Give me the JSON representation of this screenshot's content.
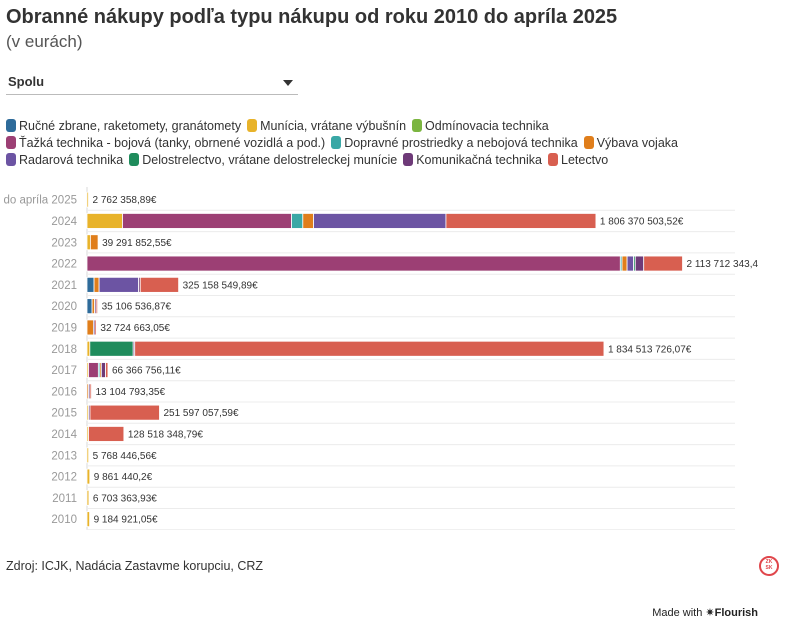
{
  "header": {
    "title": "Obranné nákupy podľa typu nákupu od roku 2010 do apríla 2025",
    "subtitle": "(v eurách)"
  },
  "filter": {
    "selected": "Spolu"
  },
  "legend": [
    {
      "label": "Ručné zbrane, raketomety, granátomety",
      "color": "#2e6b9a",
      "name": "legend-rucne-zbrane"
    },
    {
      "label": "Munícia, vrátane výbušnín",
      "color": "#e8b32a",
      "name": "legend-municia"
    },
    {
      "label": "Odmínovacia technika",
      "color": "#7bb540",
      "name": "legend-odminovacia"
    },
    {
      "label": "Ťažká technika - bojová (tanky, obrnené vozidlá a pod.)",
      "color": "#9c3f74",
      "name": "legend-tazka-technika"
    },
    {
      "label": "Dopravné prostriedky a nebojová technika",
      "color": "#3aa8a6",
      "name": "legend-dopravne"
    },
    {
      "label": "Výbava vojaka",
      "color": "#e07e1b",
      "name": "legend-vybava"
    },
    {
      "label": "Radarová technika",
      "color": "#6c54a3",
      "name": "legend-radarova"
    },
    {
      "label": "Delostrelectvo, vrátane delostreleckej munície",
      "color": "#1f8c5c",
      "name": "legend-delostrelectvo"
    },
    {
      "label": "Komunikačná technika",
      "color": "#6e3a78",
      "name": "legend-komunikacna"
    },
    {
      "label": "Letectvo",
      "color": "#d85f50",
      "name": "legend-letectvo"
    }
  ],
  "chart_data": {
    "type": "bar",
    "orientation": "horizontal",
    "stacked": true,
    "categories": [
      "do apríla 2025",
      "2024",
      "2023",
      "2022",
      "2021",
      "2020",
      "2019",
      "2018",
      "2017",
      "2016",
      "2015",
      "2014",
      "2013",
      "2012",
      "2011",
      "2010"
    ],
    "series": [
      {
        "name": "Ručné zbrane, raketomety, granátomety",
        "color": "#2e6b9a",
        "values": [
          0,
          0,
          0,
          0,
          25000000,
          18000000,
          0,
          0,
          0,
          0,
          0,
          0,
          0,
          0,
          0,
          0
        ]
      },
      {
        "name": "Munícia, vrátane výbušnín",
        "color": "#e8b32a",
        "values": [
          2762358.89,
          126000000,
          12000000,
          0,
          0,
          0,
          0,
          10000000,
          2000000,
          0,
          3000000,
          3000000,
          5768446.56,
          9861440.2,
          6703363.93,
          9184921.05
        ]
      },
      {
        "name": "Odmínovacia technika",
        "color": "#7bb540",
        "values": [
          0,
          0,
          0,
          0,
          0,
          0,
          0,
          0,
          0,
          0,
          0,
          0,
          0,
          0,
          0,
          0
        ]
      },
      {
        "name": "Ťažká technika - bojová (tanky, obrnené vozidlá a pod.)",
        "color": "#9c3f74",
        "values": [
          0,
          600000000,
          0,
          1893000000,
          0,
          0,
          0,
          0,
          35000000,
          0,
          0,
          0,
          0,
          0,
          0,
          0
        ]
      },
      {
        "name": "Dopravné prostriedky a nebojová technika",
        "color": "#3aa8a6",
        "values": [
          0,
          40000000,
          0,
          6000000,
          0,
          0,
          0,
          0,
          2000000,
          0,
          0,
          0,
          0,
          0,
          0,
          0
        ]
      },
      {
        "name": "Výbava vojaka",
        "color": "#e07e1b",
        "values": [
          0,
          38000000,
          27291852.55,
          18000000,
          18000000,
          9000000,
          22724663.05,
          0,
          4000000,
          5000000,
          0,
          0,
          0,
          0,
          0,
          0
        ]
      },
      {
        "name": "Radarová technika",
        "color": "#6c54a3",
        "values": [
          0,
          470000000,
          0,
          23000000,
          140000000,
          0,
          0,
          0,
          0,
          0,
          0,
          0,
          0,
          0,
          0,
          0
        ]
      },
      {
        "name": "Delostrelectvo, vrátane delostreleckej munície",
        "color": "#1f8c5c",
        "values": [
          0,
          0,
          0,
          6000000,
          0,
          0,
          0,
          154000000,
          0,
          0,
          0,
          0,
          0,
          0,
          0,
          0
        ]
      },
      {
        "name": "Komunikačná technika",
        "color": "#6e3a78",
        "values": [
          0,
          0,
          0,
          30000000,
          6000000,
          3000000,
          5000000,
          5000000,
          15000000,
          3000000,
          2000000,
          0,
          0,
          0,
          0,
          0
        ]
      },
      {
        "name": "Letectvo",
        "color": "#d85f50",
        "values": [
          0,
          532370503.52,
          0,
          137712343.4,
          136158549.89,
          5106536.87,
          5000000,
          1665513726.07,
          8366756.11,
          5104793.35,
          246597057.59,
          125518348.79,
          0,
          0,
          0,
          0
        ]
      }
    ],
    "totals_labels": [
      "2 762 358,89€",
      "1 806 370 503,52€",
      "39 291 852,55€",
      "2 113 712 343,4",
      "325 158 549,89€",
      "35 106 536,87€",
      "32 724 663,05€",
      "1 834 513 726,07€",
      "66 366 756,11€",
      "13 104 793,35€",
      "251 597 057,59€",
      "128 518 348,79€",
      "5 768 446,56€",
      "9 861 440,2€",
      "6 703 363,93€",
      "9 184 921,05€"
    ],
    "xlim": [
      0,
      2300000000
    ],
    "grid": true,
    "legend_position": "top"
  },
  "footer": {
    "source": "Zdroj: ICJK, Nadácia Zastavme korupciu, CRZ",
    "made_with": "Made with",
    "brand": "✷Flourish",
    "badge_line1": "ZK",
    "badge_line2": "SK"
  }
}
